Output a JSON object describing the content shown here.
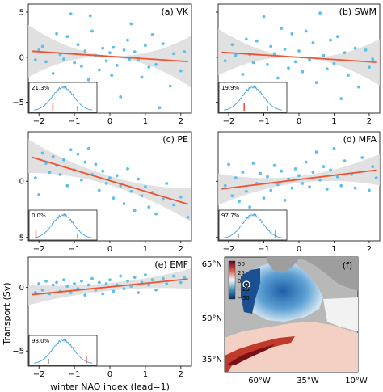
{
  "figure": {
    "ylabel": "Transport (Sv)",
    "xlabel": "winter NAO index (lead=1)"
  },
  "colors": {
    "points": "#5bc0eb",
    "fit_line": "#ef5331",
    "band": "#dcdcdc",
    "hist": "#4aa3df",
    "marker": "#e03c28"
  },
  "chart_data": [
    {
      "type": "scatter",
      "title": "(a) VK",
      "xlim": [
        -2.3,
        2.3
      ],
      "ylim": [
        -6.2,
        5.9
      ],
      "xticks": [
        -2,
        -1,
        0,
        1,
        2
      ],
      "yticks": [
        -5,
        0,
        5
      ],
      "xtick_labels": [
        "−2",
        "−1",
        "0",
        "1",
        "2"
      ],
      "ytick_labels": [
        "−5",
        "0",
        "5"
      ],
      "show_xtick_labels": true,
      "show_ytick_labels": true,
      "fit": {
        "intercept": 0.1,
        "slope": -0.26,
        "band_center": 0.1,
        "band_edge": 2.9
      },
      "inset": {
        "label": "21.3%",
        "marker_pos": -0.35
      },
      "points": [
        [
          -2.1,
          -0.3
        ],
        [
          -2.0,
          0.8
        ],
        [
          -1.9,
          1.2
        ],
        [
          -1.8,
          -0.5
        ],
        [
          -1.6,
          -1.8
        ],
        [
          -1.5,
          2.6
        ],
        [
          -1.4,
          0.3
        ],
        [
          -1.3,
          -0.2
        ],
        [
          -1.2,
          2.3
        ],
        [
          -1.1,
          4.8
        ],
        [
          -1.0,
          -0.6
        ],
        [
          -0.9,
          1.4
        ],
        [
          -0.8,
          -1.0
        ],
        [
          -0.7,
          0.7
        ],
        [
          -0.6,
          -2.5
        ],
        [
          -0.55,
          4.6
        ],
        [
          -0.5,
          2.9
        ],
        [
          -0.4,
          0.2
        ],
        [
          -0.3,
          -1.4
        ],
        [
          -0.2,
          1.0
        ],
        [
          -0.1,
          -0.4
        ],
        [
          0.0,
          0.5
        ],
        [
          0.05,
          -2.0
        ],
        [
          0.1,
          1.1
        ],
        [
          0.2,
          -0.9
        ],
        [
          0.3,
          -4.4
        ],
        [
          0.4,
          0.8
        ],
        [
          0.5,
          1.9
        ],
        [
          0.55,
          -0.2
        ],
        [
          0.6,
          3.7
        ],
        [
          0.7,
          0.6
        ],
        [
          0.8,
          -0.3
        ],
        [
          0.9,
          -2.2
        ],
        [
          1.0,
          1.3
        ],
        [
          1.1,
          -1.1
        ],
        [
          1.2,
          2.5
        ],
        [
          1.3,
          -0.8
        ],
        [
          1.4,
          -5.6
        ],
        [
          1.5,
          1.5
        ],
        [
          1.7,
          -3.2
        ],
        [
          1.8,
          0.4
        ],
        [
          2.0,
          -1.5
        ],
        [
          2.1,
          0.6
        ]
      ]
    },
    {
      "type": "scatter",
      "title": "(b) SWM",
      "xlim": [
        -2.3,
        2.3
      ],
      "ylim": [
        -6.2,
        5.9
      ],
      "xticks": [
        -2,
        -1,
        0,
        1,
        2
      ],
      "yticks": [
        -5,
        0,
        5
      ],
      "xtick_labels": [
        "−2",
        "−1",
        "0",
        "1",
        "2"
      ],
      "ytick_labels": [
        "−5",
        "0",
        "5"
      ],
      "show_xtick_labels": true,
      "show_ytick_labels": false,
      "fit": {
        "intercept": 0.0,
        "slope": -0.25,
        "band_center": 0.0,
        "band_edge": 2.6
      },
      "inset": {
        "label": "19.9%",
        "marker_pos": -0.3
      },
      "points": [
        [
          -2.1,
          -0.4
        ],
        [
          -1.9,
          1.4
        ],
        [
          -1.8,
          0.2
        ],
        [
          -1.6,
          -1.9
        ],
        [
          -1.5,
          2.0
        ],
        [
          -1.4,
          0.3
        ],
        [
          -1.3,
          -0.6
        ],
        [
          -1.2,
          1.8
        ],
        [
          -1.0,
          4.5
        ],
        [
          -0.9,
          -0.8
        ],
        [
          -0.8,
          1.2
        ],
        [
          -0.7,
          0.4
        ],
        [
          -0.6,
          -2.3
        ],
        [
          -0.5,
          3.2
        ],
        [
          -0.4,
          0.9
        ],
        [
          -0.3,
          -1.2
        ],
        [
          -0.2,
          2.6
        ],
        [
          -0.1,
          -0.5
        ],
        [
          0.0,
          0.7
        ],
        [
          0.1,
          -1.6
        ],
        [
          0.2,
          2.9
        ],
        [
          0.3,
          -0.3
        ],
        [
          0.4,
          1.6
        ],
        [
          0.5,
          -2.8
        ],
        [
          0.6,
          4.9
        ],
        [
          0.7,
          0.2
        ],
        [
          0.8,
          -1.3
        ],
        [
          0.9,
          1.9
        ],
        [
          1.0,
          -0.7
        ],
        [
          1.1,
          2.3
        ],
        [
          1.2,
          -4.6
        ],
        [
          1.3,
          0.5
        ],
        [
          1.4,
          -2.0
        ],
        [
          1.6,
          1.0
        ],
        [
          1.7,
          -3.3
        ],
        [
          1.9,
          0.8
        ],
        [
          2.0,
          -1.1
        ],
        [
          2.1,
          -0.2
        ]
      ]
    },
    {
      "type": "scatter",
      "title": "(c) PE",
      "xlim": [
        -2.3,
        2.3
      ],
      "ylim": [
        -5.3,
        4.4
      ],
      "xticks": [
        -2,
        -1,
        0,
        1,
        2
      ],
      "yticks": [
        -5,
        0
      ],
      "xtick_labels": [
        "−2",
        "−1",
        "0",
        "1",
        "2"
      ],
      "ytick_labels": [
        "−5",
        "0"
      ],
      "show_xtick_labels": true,
      "show_ytick_labels": true,
      "fit": {
        "intercept": 0.05,
        "slope": -0.95,
        "band_center": 0.4,
        "band_edge": 1.5
      },
      "inset": {
        "label": "0.0%",
        "marker_pos": -0.93
      },
      "points": [
        [
          -2.1,
          0.3
        ],
        [
          -2.0,
          -1.2
        ],
        [
          -1.9,
          2.5
        ],
        [
          -1.8,
          1.6
        ],
        [
          -1.7,
          0.8
        ],
        [
          -1.6,
          2.2
        ],
        [
          -1.5,
          1.4
        ],
        [
          -1.4,
          0.6
        ],
        [
          -1.3,
          1.9
        ],
        [
          -1.2,
          -0.4
        ],
        [
          -1.1,
          2.8
        ],
        [
          -1.0,
          1.0
        ],
        [
          -0.9,
          2.4
        ],
        [
          -0.8,
          0.1
        ],
        [
          -0.7,
          1.7
        ],
        [
          -0.6,
          2.9
        ],
        [
          -0.5,
          0.6
        ],
        [
          -0.4,
          1.5
        ],
        [
          -0.3,
          -0.8
        ],
        [
          -0.2,
          0.9
        ],
        [
          -0.1,
          -0.2
        ],
        [
          0.0,
          0.3
        ],
        [
          0.1,
          -1.5
        ],
        [
          0.2,
          0.5
        ],
        [
          0.3,
          -0.4
        ],
        [
          0.4,
          -2.0
        ],
        [
          0.5,
          1.1
        ],
        [
          0.6,
          -0.9
        ],
        [
          0.7,
          -2.6
        ],
        [
          0.8,
          0.2
        ],
        [
          0.9,
          -1.3
        ],
        [
          1.0,
          -0.5
        ],
        [
          1.1,
          -2.3
        ],
        [
          1.2,
          -1.0
        ],
        [
          1.3,
          -2.9
        ],
        [
          1.5,
          -1.6
        ],
        [
          1.6,
          -0.2
        ],
        [
          1.8,
          -2.1
        ],
        [
          2.0,
          -1.4
        ],
        [
          2.2,
          -3.2
        ]
      ]
    },
    {
      "type": "scatter",
      "title": "(d) MFA",
      "xlim": [
        -2.3,
        2.3
      ],
      "ylim": [
        -5.3,
        4.4
      ],
      "xticks": [
        -2,
        -1,
        0,
        1,
        2
      ],
      "yticks": [
        -5,
        0
      ],
      "xtick_labels": [
        "−2",
        "−1",
        "0",
        "1",
        "2"
      ],
      "ytick_labels": [
        "−5",
        "0"
      ],
      "show_xtick_labels": true,
      "show_ytick_labels": false,
      "fit": {
        "intercept": 0.15,
        "slope": 0.38,
        "band_center": 0.3,
        "band_edge": 1.4
      },
      "inset": {
        "label": "97.7%",
        "marker_pos": 0.78
      },
      "points": [
        [
          -2.1,
          -0.4
        ],
        [
          -2.0,
          1.5
        ],
        [
          -1.9,
          -1.3
        ],
        [
          -1.8,
          0.3
        ],
        [
          -1.7,
          -1.8
        ],
        [
          -1.6,
          0.8
        ],
        [
          -1.5,
          -0.9
        ],
        [
          -1.4,
          -2.3
        ],
        [
          -1.3,
          1.6
        ],
        [
          -1.2,
          -0.2
        ],
        [
          -1.1,
          0.7
        ],
        [
          -1.0,
          -1.5
        ],
        [
          -0.9,
          0.4
        ],
        [
          -0.8,
          -0.8
        ],
        [
          -0.7,
          1.4
        ],
        [
          -0.6,
          -0.3
        ],
        [
          -0.5,
          0.9
        ],
        [
          -0.4,
          -1.7
        ],
        [
          -0.3,
          0.2
        ],
        [
          -0.2,
          -0.6
        ],
        [
          -0.1,
          1.1
        ],
        [
          0.0,
          0.5
        ],
        [
          0.1,
          -0.2
        ],
        [
          0.2,
          1.7
        ],
        [
          0.3,
          -0.5
        ],
        [
          0.4,
          0.8
        ],
        [
          0.5,
          2.6
        ],
        [
          0.6,
          0.1
        ],
        [
          0.7,
          1.3
        ],
        [
          0.8,
          -0.7
        ],
        [
          0.9,
          1.0
        ],
        [
          1.0,
          2.9
        ],
        [
          1.1,
          0.4
        ],
        [
          1.2,
          -0.4
        ],
        [
          1.3,
          1.8
        ],
        [
          1.5,
          0.6
        ],
        [
          1.6,
          -0.6
        ],
        [
          1.8,
          2.1
        ],
        [
          2.0,
          -0.8
        ],
        [
          2.1,
          1.3
        ],
        [
          2.2,
          0.3
        ]
      ]
    },
    {
      "type": "scatter",
      "title": "(e) EMF",
      "xlim": [
        -2.3,
        2.3
      ],
      "ylim": [
        -6.2,
        2.4
      ],
      "xticks": [
        -2,
        -1,
        0,
        1,
        2
      ],
      "yticks": [
        -5,
        0
      ],
      "xtick_labels": [
        "−2",
        "−1",
        "0",
        "1",
        "2"
      ],
      "ytick_labels": [
        "−5",
        "0"
      ],
      "show_xtick_labels": true,
      "show_ytick_labels": true,
      "fit": {
        "intercept": 0.05,
        "slope": 0.28,
        "band_center": 0.3,
        "band_edge": 0.8
      },
      "inset": {
        "label": "98.0%",
        "marker_pos": 0.8
      },
      "points": [
        [
          -2.1,
          -0.4
        ],
        [
          -2.0,
          0.3
        ],
        [
          -1.9,
          -0.2
        ],
        [
          -1.8,
          0.5
        ],
        [
          -1.7,
          -0.5
        ],
        [
          -1.6,
          0.2
        ],
        [
          -1.5,
          0.4
        ],
        [
          -1.4,
          -0.3
        ],
        [
          -1.3,
          0.6
        ],
        [
          -1.2,
          0.1
        ],
        [
          -1.1,
          -0.4
        ],
        [
          -1.0,
          0.3
        ],
        [
          -0.9,
          -0.1
        ],
        [
          -0.8,
          0.5
        ],
        [
          -0.7,
          -0.6
        ],
        [
          -0.6,
          0.2
        ],
        [
          -0.5,
          0.7
        ],
        [
          -0.4,
          -0.2
        ],
        [
          -0.3,
          0.4
        ],
        [
          -0.2,
          -0.5
        ],
        [
          -0.1,
          0.3
        ],
        [
          0.0,
          0.6
        ],
        [
          0.1,
          -0.3
        ],
        [
          0.2,
          0.2
        ],
        [
          0.3,
          0.9
        ],
        [
          0.4,
          -0.1
        ],
        [
          0.5,
          0.5
        ],
        [
          0.6,
          0.1
        ],
        [
          0.7,
          0.8
        ],
        [
          0.8,
          -0.4
        ],
        [
          0.9,
          0.4
        ],
        [
          1.0,
          1.0
        ],
        [
          1.1,
          0.2
        ],
        [
          1.2,
          0.6
        ],
        [
          1.3,
          -0.2
        ],
        [
          1.5,
          0.7
        ],
        [
          1.6,
          0.3
        ],
        [
          1.8,
          0.9
        ],
        [
          2.0,
          0.4
        ],
        [
          2.1,
          0.8
        ]
      ]
    }
  ],
  "map": {
    "title": "(f)",
    "lat_labels": [
      "65°N",
      "50°N",
      "35°N"
    ],
    "lon_labels": [
      "60°W",
      "35°W",
      "10°W"
    ],
    "colorbar_ticks": [
      "50",
      "25",
      "0",
      "−25",
      "−50"
    ]
  }
}
